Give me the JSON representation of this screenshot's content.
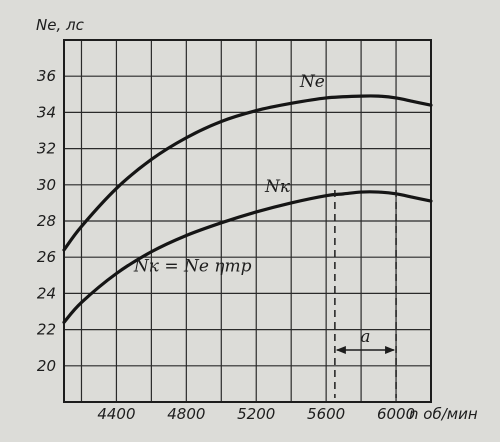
{
  "chart_data": {
    "type": "line",
    "ylabel": "Ne, лс",
    "xlabel": "n об/мин",
    "xlim": [
      4100,
      6200
    ],
    "ylim": [
      18,
      38
    ],
    "x_ticks": [
      4400,
      4800,
      5200,
      5600,
      6000
    ],
    "y_ticks": [
      20,
      22,
      24,
      26,
      28,
      30,
      32,
      34,
      36
    ],
    "grid": true,
    "series": [
      {
        "name": "Ne",
        "x": [
          4100,
          4200,
          4400,
          4600,
          4800,
          5000,
          5200,
          5400,
          5600,
          5800,
          5900,
          6000,
          6100,
          6200
        ],
        "y": [
          26.4,
          27.7,
          29.8,
          31.4,
          32.6,
          33.5,
          34.1,
          34.5,
          34.8,
          34.9,
          34.9,
          34.8,
          34.6,
          34.4
        ]
      },
      {
        "name": "Nк",
        "x": [
          4100,
          4200,
          4400,
          4600,
          4800,
          5000,
          5200,
          5400,
          5600,
          5700,
          5800,
          5900,
          6000,
          6100,
          6200
        ],
        "y": [
          22.4,
          23.5,
          25.1,
          26.3,
          27.2,
          27.9,
          28.5,
          29.0,
          29.4,
          29.5,
          29.6,
          29.6,
          29.5,
          29.3,
          29.1
        ]
      }
    ],
    "annotations": {
      "ne_label": "Ne",
      "nk_label": "Nк",
      "formula": "Nк = Ne ηтр",
      "interval_label": "a",
      "interval_x": [
        5650,
        6000
      ]
    }
  }
}
